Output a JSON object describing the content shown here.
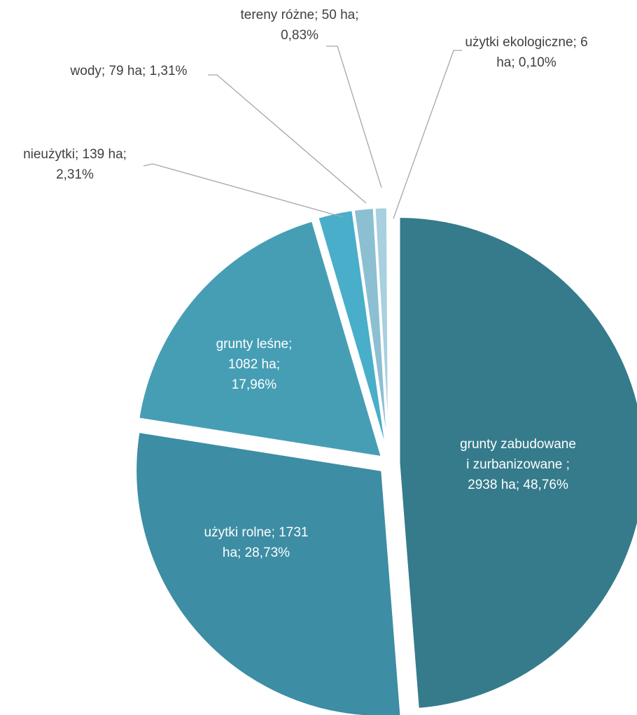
{
  "chart_data": {
    "type": "pie",
    "unit": "ha",
    "slices": [
      {
        "name": "grunty zabudowane i zurbanizowane",
        "value": 2938,
        "percent": 48.76,
        "color": "#357b8b",
        "label_lines": [
          "grunty zabudowane",
          "i  zurbanizowane ;",
          "2938 ha; 48,76%"
        ]
      },
      {
        "name": "użytki rolne",
        "value": 1731,
        "percent": 28.73,
        "color": "#3d8da4",
        "label_lines": [
          "użytki rolne; 1731",
          "ha; 28,73%"
        ]
      },
      {
        "name": "grunty leśne",
        "value": 1082,
        "percent": 17.96,
        "color": "#469eb5",
        "label_lines": [
          "grunty leśne;",
          "1082 ha;",
          "17,96%"
        ]
      },
      {
        "name": "nieużytki",
        "value": 139,
        "percent": 2.31,
        "color": "#49aec9",
        "label_lines": [
          "nieużytki; 139 ha;",
          "2,31%"
        ]
      },
      {
        "name": "wody",
        "value": 79,
        "percent": 1.31,
        "color": "#8cbfd2",
        "label_lines": [
          "wody; 79 ha; 1,31%"
        ]
      },
      {
        "name": "tereny różne",
        "value": 50,
        "percent": 0.83,
        "color": "#a8d0de",
        "label_lines": [
          "tereny różne; 50 ha;",
          "0,83%"
        ]
      },
      {
        "name": "użytki ekologiczne",
        "value": 6,
        "percent": 0.1,
        "color": "#c5e1ea",
        "label_lines": [
          "użytki ekologiczne; 6",
          "ha; 0,10%"
        ]
      }
    ]
  }
}
